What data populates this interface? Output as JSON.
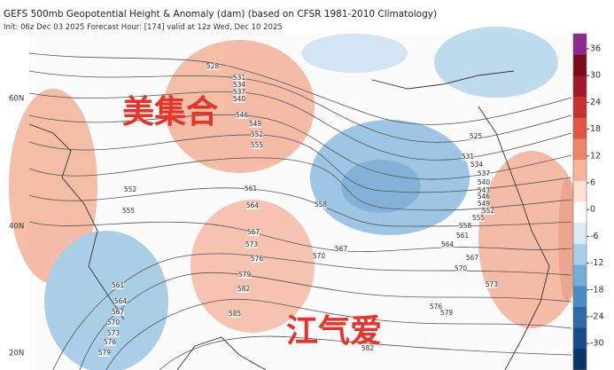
{
  "header": {
    "title": "GEFS 500mb Geopotential Height & Anomaly (dam) (based on CFSR 1981-2010 Climatology)",
    "subtitle": "Init: 06z Dec 03 2025    Forecast Hour: [174]   valid at 12z Wed, Dec 10 2025"
  },
  "overlay_text": [
    "美集合",
    "江气爱"
  ],
  "latitude_labels": [
    "60N",
    "40N",
    "20N"
  ],
  "colorbar": {
    "ticks": [
      36,
      30,
      24,
      18,
      12,
      6,
      0,
      -6,
      -12,
      -18,
      -24,
      -30
    ]
  },
  "contour_labels": [
    "528",
    "531",
    "534",
    "537",
    "540",
    "546",
    "549",
    "552",
    "555",
    "561",
    "564",
    "567",
    "573",
    "576",
    "579",
    "582",
    "585",
    "552",
    "555",
    "561",
    "564",
    "567",
    "570",
    "573",
    "576",
    "579",
    "558",
    "567",
    "570",
    "525",
    "531",
    "534",
    "537",
    "540",
    "543",
    "546",
    "549",
    "552",
    "555",
    "558",
    "561",
    "564",
    "567",
    "570",
    "573",
    "576",
    "579",
    "582"
  ]
}
